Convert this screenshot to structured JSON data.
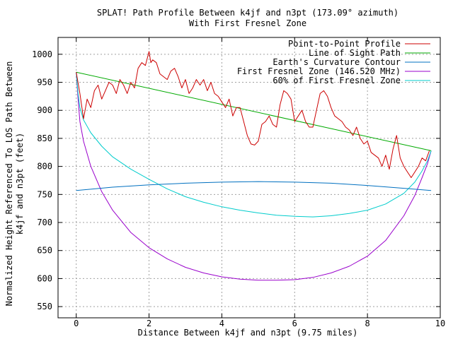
{
  "chart_data": {
    "type": "line",
    "title_line1": "SPLAT! Path Profile Between k4jf and n3pt (173.09° azimuth)",
    "title_line2": "With First Fresnel Zone",
    "xlabel": "Distance Between k4jf and n3pt (9.75 miles)",
    "ylabel_line1": "Normalized Height Referenced To LOS Path Between",
    "ylabel_line2": "k4jf and n3pt (feet)",
    "xlim": [
      -0.5,
      10
    ],
    "ylim": [
      530,
      1030
    ],
    "xticks": [
      0,
      2,
      4,
      6,
      8,
      10
    ],
    "yticks": [
      550,
      600,
      650,
      700,
      750,
      800,
      850,
      900,
      950,
      1000
    ],
    "grid": true,
    "legend_position": "top-right",
    "series": [
      {
        "name": "Point-to-Point Profile",
        "color": "#cc0000",
        "x": [
          0,
          0.1,
          0.2,
          0.3,
          0.4,
          0.5,
          0.6,
          0.7,
          0.8,
          0.9,
          1.0,
          1.1,
          1.2,
          1.3,
          1.4,
          1.5,
          1.6,
          1.7,
          1.8,
          1.9,
          2.0,
          2.05,
          2.1,
          2.2,
          2.3,
          2.4,
          2.5,
          2.6,
          2.7,
          2.8,
          2.9,
          3.0,
          3.1,
          3.2,
          3.3,
          3.4,
          3.5,
          3.6,
          3.7,
          3.8,
          3.9,
          4.0,
          4.1,
          4.2,
          4.3,
          4.4,
          4.5,
          4.6,
          4.7,
          4.8,
          4.9,
          5.0,
          5.1,
          5.2,
          5.3,
          5.4,
          5.5,
          5.6,
          5.7,
          5.8,
          5.9,
          6.0,
          6.1,
          6.2,
          6.3,
          6.4,
          6.5,
          6.6,
          6.7,
          6.8,
          6.9,
          7.0,
          7.1,
          7.2,
          7.3,
          7.4,
          7.5,
          7.6,
          7.7,
          7.8,
          7.9,
          8.0,
          8.1,
          8.2,
          8.3,
          8.4,
          8.5,
          8.6,
          8.7,
          8.8,
          8.9,
          9.0,
          9.1,
          9.2,
          9.3,
          9.4,
          9.5,
          9.6,
          9.7
        ],
        "y": [
          968,
          930,
          885,
          920,
          905,
          935,
          945,
          920,
          935,
          950,
          945,
          930,
          955,
          945,
          930,
          950,
          940,
          975,
          985,
          980,
          1005,
          985,
          990,
          985,
          965,
          960,
          955,
          970,
          975,
          960,
          940,
          955,
          930,
          940,
          955,
          945,
          955,
          935,
          950,
          930,
          925,
          915,
          905,
          920,
          890,
          905,
          905,
          880,
          855,
          840,
          838,
          845,
          875,
          880,
          890,
          875,
          870,
          910,
          935,
          930,
          920,
          880,
          890,
          900,
          880,
          870,
          870,
          900,
          930,
          935,
          925,
          905,
          890,
          885,
          880,
          870,
          865,
          855,
          870,
          850,
          840,
          845,
          825,
          820,
          815,
          800,
          820,
          795,
          830,
          855,
          815,
          800,
          790,
          780,
          790,
          800,
          815,
          810,
          828
        ]
      },
      {
        "name": "Line of Sight Path",
        "color": "#00aa00",
        "x": [
          0,
          9.75
        ],
        "y": [
          968,
          828
        ]
      },
      {
        "name": "Earth's Curvature Contour",
        "color": "#0070c0",
        "x": [
          0,
          1,
          2,
          3,
          4,
          5,
          6,
          7,
          8,
          9,
          9.75
        ],
        "y": [
          757,
          763,
          767,
          770,
          772,
          773,
          772,
          770,
          766,
          761,
          757
        ]
      },
      {
        "name": "First Fresnel Zone (146.520 MHz)",
        "color": "#9900cc",
        "x": [
          0,
          0.05,
          0.1,
          0.2,
          0.4,
          0.7,
          1.0,
          1.5,
          2.0,
          2.5,
          3.0,
          3.5,
          4.0,
          4.5,
          5.0,
          5.5,
          6.0,
          6.5,
          7.0,
          7.5,
          8.0,
          8.5,
          9.0,
          9.3,
          9.5,
          9.65,
          9.75
        ],
        "y": [
          968,
          920,
          880,
          845,
          800,
          755,
          722,
          682,
          655,
          635,
          620,
          610,
          603,
          599,
          597,
          597,
          598,
          602,
          610,
          622,
          640,
          668,
          712,
          748,
          780,
          805,
          828
        ]
      },
      {
        "name": "60% of First Fresnel Zone",
        "color": "#00cccc",
        "x": [
          0,
          0.05,
          0.1,
          0.2,
          0.4,
          0.7,
          1.0,
          1.5,
          2.0,
          2.5,
          3.0,
          3.5,
          4.0,
          4.5,
          5.0,
          5.5,
          6.0,
          6.5,
          7.0,
          7.5,
          8.0,
          8.5,
          9.0,
          9.3,
          9.5,
          9.65,
          9.75
        ],
        "y": [
          968,
          930,
          905,
          883,
          860,
          836,
          817,
          795,
          777,
          760,
          746,
          736,
          728,
          722,
          717,
          713,
          711,
          710,
          712,
          716,
          722,
          733,
          752,
          772,
          792,
          810,
          828
        ]
      }
    ]
  }
}
